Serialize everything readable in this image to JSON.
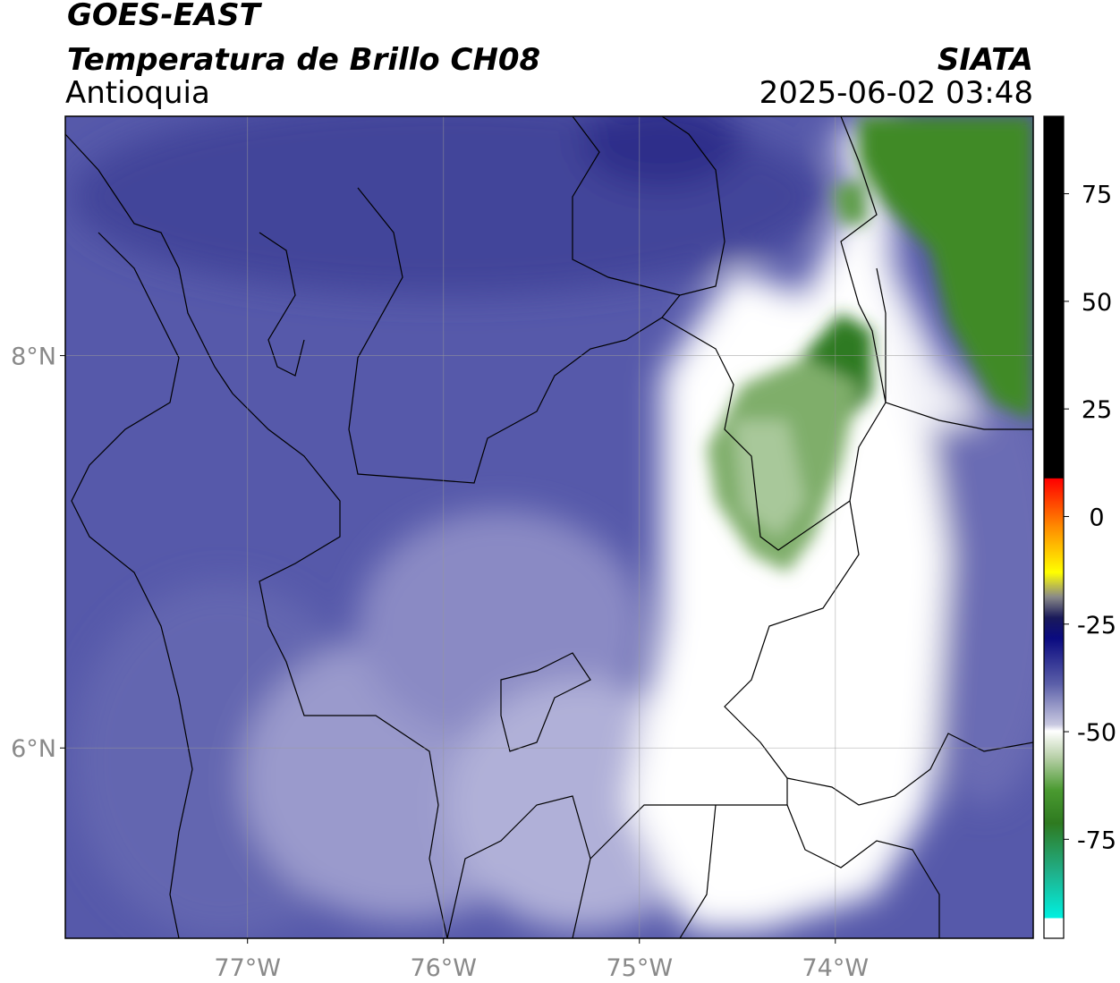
{
  "header": {
    "title": "GOES-EAST",
    "subtitle": "Temperatura de Brillo CH08",
    "region": "Antioquia",
    "source": "SIATA",
    "timestamp": "2025-06-02 03:48"
  },
  "map": {
    "xlim": [
      -77.93,
      -72.99
    ],
    "ylim": [
      5.03,
      9.22
    ],
    "xticks": [
      {
        "value": -77,
        "label": "77°W"
      },
      {
        "value": -76,
        "label": "76°W"
      },
      {
        "value": -75,
        "label": "75°W"
      },
      {
        "value": -74,
        "label": "74°W"
      }
    ],
    "yticks": [
      {
        "value": 8,
        "label": "8°N"
      },
      {
        "value": 6,
        "label": "6°N"
      }
    ],
    "grid": true
  },
  "colorbar": {
    "lim": [
      -98,
      93
    ],
    "ticks": [
      75,
      50,
      25,
      0,
      -25,
      -50,
      -75
    ]
  }
}
